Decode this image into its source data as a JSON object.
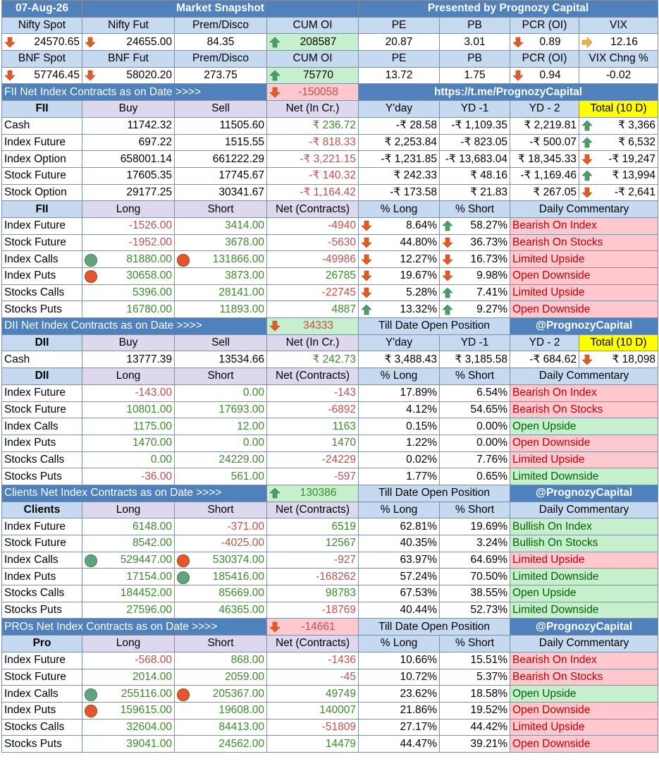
{
  "header": {
    "date": "07-Aug-26",
    "title": "Market Snapshot",
    "presented_by": "Presented by Prognozy Capital"
  },
  "market": {
    "nifty_header": [
      "Nifty Spot",
      "Nifty Fut",
      "Prem/Disco",
      "CUM OI",
      "PE",
      "PB",
      "PCR (OI)",
      "VIX"
    ],
    "nifty": {
      "spot": "24570.65",
      "fut": "24655.00",
      "prem": "84.35",
      "cum_oi": "208587",
      "pe": "20.87",
      "pb": "3.01",
      "pcr": "0.89",
      "vix": "12.16"
    },
    "bnf_header": [
      "BNF Spot",
      "BNF Fut",
      "Prem/Disco",
      "CUM OI",
      "PE",
      "PB",
      "PCR (OI)",
      "VIX Chng %"
    ],
    "bnf": {
      "spot": "57746.45",
      "fut": "58020.20",
      "prem": "273.75",
      "cum_oi": "75770",
      "pe": "13.72",
      "pb": "1.75",
      "pcr": "0.94",
      "vix": "-0.02"
    }
  },
  "fii_banner": {
    "label": "FII  Net Index Contracts as on Date >>>>",
    "value": "-150058",
    "link": "https://t.me/PrognozyCapital"
  },
  "fii_cash": {
    "header": [
      "FII",
      "Buy",
      "Sell",
      "Net (In Cr.)",
      "Y'day",
      "YD -1",
      "YD - 2",
      "Total (10 D)"
    ],
    "rows": [
      {
        "name": "Cash",
        "buy": "11742.32",
        "sell": "11505.60",
        "net": "₹ 236.72",
        "yday": "-₹ 28.58",
        "yd1": "-₹ 1,109.35",
        "yd2": "₹ 2,219.81",
        "total": "₹ 3,366",
        "dir": "up"
      },
      {
        "name": "Index Future",
        "buy": "697.22",
        "sell": "1515.55",
        "net": "-₹ 818.33",
        "yday": "₹ 2,253.84",
        "yd1": "-₹ 823.05",
        "yd2": "-₹ 500.07",
        "total": "₹ 6,532",
        "dir": "up"
      },
      {
        "name": "Index Option",
        "buy": "658001.14",
        "sell": "661222.29",
        "net": "-₹ 3,221.15",
        "yday": "-₹ 1,231.85",
        "yd1": "-₹ 13,683.04",
        "yd2": "₹ 18,345.33",
        "total": "-₹ 19,247",
        "dir": "down"
      },
      {
        "name": "Stock Future",
        "buy": "17605.35",
        "sell": "17745.67",
        "net": "-₹ 140.32",
        "yday": "₹ 242.33",
        "yd1": "₹ 48.16",
        "yd2": "-₹ 1,169.46",
        "total": "₹ 13,994",
        "dir": "up"
      },
      {
        "name": "Stock Option",
        "buy": "29177.25",
        "sell": "30341.67",
        "net": "-₹ 1,164.42",
        "yday": "-₹ 173.58",
        "yd1": "₹ 21.83",
        "yd2": "₹ 267.05",
        "total": "-₹ 2,641",
        "dir": "down"
      }
    ]
  },
  "fii_pos": {
    "header": [
      "FII",
      "Long",
      "Short",
      "Net (Contracts)",
      "% Long",
      "% Short",
      "Daily Commentary"
    ],
    "rows": [
      {
        "name": "Index Future",
        "long": "-1526.00",
        "short": "3414.00",
        "net": "-4940",
        "pl": "8.64%",
        "plDir": "down",
        "ps": "58.27%",
        "psDir": "up",
        "comm": "Bearish On Index",
        "tone": "pink"
      },
      {
        "name": "Stock Future",
        "long": "-1952.00",
        "short": "3678.00",
        "net": "-5630",
        "pl": "44.80%",
        "plDir": "down",
        "ps": "36.73%",
        "psDir": "down",
        "comm": "Bearish On Stocks",
        "tone": "pink"
      },
      {
        "name": "Index Calls",
        "long": "81880.00",
        "ldot": "g",
        "short": "131866.00",
        "sdot": "o",
        "net": "-49986",
        "pl": "12.27%",
        "plDir": "down",
        "ps": "16.73%",
        "psDir": "down",
        "comm": "Limited Upside",
        "tone": "pink"
      },
      {
        "name": "Index Puts",
        "long": "30658.00",
        "ldot": "o",
        "short": "3873.00",
        "net": "26785",
        "pl": "19.67%",
        "plDir": "down",
        "ps": "9.98%",
        "psDir": "down",
        "comm": "Open Downside",
        "tone": "pink"
      },
      {
        "name": "Stocks Calls",
        "long": "5396.00",
        "short": "28141.00",
        "net": "-22745",
        "pl": "5.28%",
        "plDir": "down",
        "ps": "7.41%",
        "psDir": "up",
        "comm": "Limited Upside",
        "tone": "pink"
      },
      {
        "name": "Stocks Puts",
        "long": "16780.00",
        "short": "11893.00",
        "net": "4887",
        "pl": "13.32%",
        "plDir": "up",
        "ps": "9.27%",
        "psDir": "up",
        "comm": "Open Downside",
        "tone": "pink"
      }
    ]
  },
  "dii_banner": {
    "label": "DII Net Index Contracts as on Date >>>>",
    "value": "34333",
    "tdop": "Till Date Open Position",
    "handle": "@PrognozyCapital"
  },
  "dii_cash": {
    "header": [
      "DII",
      "Buy",
      "Sell",
      "Net (In Cr.)",
      "Y'day",
      "YD -1",
      "YD - 2",
      "Total (10 D)"
    ],
    "row": {
      "name": "Cash",
      "buy": "13777.39",
      "sell": "13534.66",
      "net": "₹ 242.73",
      "yday": "₹ 3,488.43",
      "yd1": "₹ 3,185.58",
      "yd2": "-₹ 684.62",
      "total": "₹ 18,098",
      "dir": "down"
    }
  },
  "dii_pos": {
    "header": [
      "DII",
      "Long",
      "Short",
      "Net (Contracts)",
      "% Long",
      "% Short",
      "Daily Commentary"
    ],
    "rows": [
      {
        "name": "Index Future",
        "long": "-143.00",
        "short": "0.00",
        "net": "-143",
        "pl": "17.89%",
        "ps": "6.54%",
        "comm": "Bearish On Index",
        "tone": "pink"
      },
      {
        "name": "Stock Future",
        "long": "10801.00",
        "short": "17693.00",
        "net": "-6892",
        "pl": "4.12%",
        "ps": "54.65%",
        "comm": "Bearish On Stocks",
        "tone": "pink"
      },
      {
        "name": "Index Calls",
        "long": "1175.00",
        "short": "12.00",
        "net": "1163",
        "pl": "0.15%",
        "ps": "0.00%",
        "comm": "Open Upside",
        "tone": "green"
      },
      {
        "name": "Index Puts",
        "long": "1470.00",
        "short": "0.00",
        "net": "1470",
        "pl": "1.22%",
        "ps": "0.00%",
        "comm": "Open Downside",
        "tone": "pink"
      },
      {
        "name": "Stocks Calls",
        "long": "0.00",
        "short": "24229.00",
        "net": "-24229",
        "pl": "0.02%",
        "ps": "7.76%",
        "comm": "Limited Upside",
        "tone": "pink"
      },
      {
        "name": "Stocks Puts",
        "long": "-36.00",
        "short": "561.00",
        "net": "-597",
        "pl": "1.77%",
        "ps": "0.65%",
        "comm": "Limited Downside",
        "tone": "green"
      }
    ]
  },
  "clients_banner": {
    "label": "Clients  Net Index Contracts as on Date >>>>",
    "value": "130386",
    "tdop": "Till Date Open Position",
    "handle": "@PrognozyCapital"
  },
  "clients_pos": {
    "header": [
      "Clients",
      "Long",
      "Short",
      "Net (Contracts)",
      "% Long",
      "% Short",
      "Daily Commentary"
    ],
    "rows": [
      {
        "name": "Index Future",
        "long": "6148.00",
        "short": "-371.00",
        "net": "6519",
        "pl": "62.81%",
        "ps": "19.69%",
        "comm": "Bullish On Index",
        "tone": "green"
      },
      {
        "name": "Stock Future",
        "long": "8542.00",
        "short": "-4025.00",
        "net": "12567",
        "pl": "40.35%",
        "ps": "3.24%",
        "comm": "Bullish On Stocks",
        "tone": "green"
      },
      {
        "name": "Index Calls",
        "long": "529447.00",
        "ldot": "g",
        "short": "530374.00",
        "sdot": "o",
        "net": "-927",
        "pl": "63.97%",
        "ps": "64.69%",
        "comm": "Limited Upside",
        "tone": "pink"
      },
      {
        "name": "Index Puts",
        "long": "17154.00",
        "short": "185416.00",
        "sdot": "g",
        "net": "-168262",
        "pl": "57.24%",
        "ps": "70.50%",
        "comm": "Limited Downside",
        "tone": "green"
      },
      {
        "name": "Stocks Calls",
        "long": "184452.00",
        "short": "85669.00",
        "net": "98783",
        "pl": "67.53%",
        "ps": "38.55%",
        "comm": "Open Upside",
        "tone": "green"
      },
      {
        "name": "Stocks Puts",
        "long": "27596.00",
        "short": "46365.00",
        "net": "-18769",
        "pl": "40.44%",
        "ps": "52.73%",
        "comm": "Limited Downside",
        "tone": "green"
      }
    ]
  },
  "pro_banner": {
    "label": "PROs Net Index Contracts as on Date >>>>",
    "value": "-14661",
    "tdop": "Till Date Open Position",
    "handle": "@PrognozyCapital"
  },
  "pro_pos": {
    "header": [
      "Pro",
      "Long",
      "Short",
      "Net (Contracts)",
      "% Long",
      "% Short",
      "Daily Commentary"
    ],
    "rows": [
      {
        "name": "Index Future",
        "long": "-568.00",
        "short": "868.00",
        "net": "-1436",
        "pl": "10.66%",
        "ps": "15.51%",
        "comm": "Bearish On Index",
        "tone": "pink"
      },
      {
        "name": "Stock Future",
        "long": "2014.00",
        "short": "2059.00",
        "net": "-45",
        "pl": "10.72%",
        "ps": "5.37%",
        "comm": "Bearish On Stocks",
        "tone": "pink"
      },
      {
        "name": "Index Calls",
        "long": "255116.00",
        "ldot": "g",
        "short": "205367.00",
        "sdot": "o",
        "net": "49749",
        "pl": "23.62%",
        "ps": "18.58%",
        "comm": "Open Upside",
        "tone": "green"
      },
      {
        "name": "Index Puts",
        "long": "159615.00",
        "ldot": "o",
        "short": "19608.00",
        "net": "140007",
        "pl": "21.86%",
        "ps": "19.52%",
        "comm": "Open Downside",
        "tone": "pink"
      },
      {
        "name": "Stocks Calls",
        "long": "32604.00",
        "short": "84413.00",
        "net": "-51809",
        "pl": "27.17%",
        "ps": "44.42%",
        "comm": "Limited Upside",
        "tone": "pink"
      },
      {
        "name": "Stocks Puts",
        "long": "39041.00",
        "short": "24562.00",
        "net": "14479",
        "pl": "44.47%",
        "ps": "39.21%",
        "comm": "Open Downside",
        "tone": "pink"
      }
    ]
  },
  "colors": {
    "header_blue": "#4f81bd",
    "label_blue": "#c5d9f1",
    "neg_red": "#c0504d",
    "pos_green": "#3b8a2b",
    "pink": "#ffc7ce",
    "green": "#c6efce",
    "yellow": "#ffff00"
  },
  "icons": {
    "up": "arrow-up-icon",
    "down": "arrow-down-icon",
    "right": "arrow-right-icon",
    "green_dot": "green-dot-icon",
    "orange_dot": "orange-dot-icon"
  }
}
